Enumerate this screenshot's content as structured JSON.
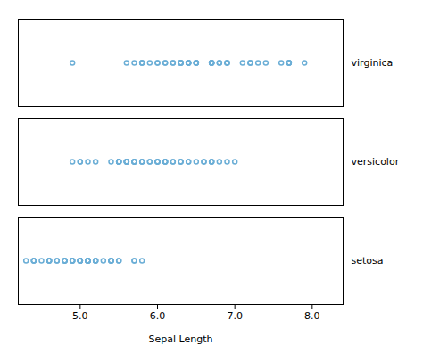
{
  "chart_data": {
    "type": "strip",
    "categories": [
      "virginica",
      "versicolor",
      "setosa"
    ],
    "values": [
      [
        6.3,
        5.8,
        7.1,
        6.3,
        6.5,
        7.6,
        4.9,
        7.3,
        6.7,
        7.2,
        6.5,
        6.4,
        6.8,
        5.7,
        5.8,
        6.4,
        6.5,
        7.7,
        7.7,
        6.0,
        6.9,
        5.6,
        7.7,
        6.3,
        6.7,
        7.2,
        6.2,
        6.1,
        6.4,
        7.2,
        7.4,
        7.9,
        6.4,
        6.3,
        6.1,
        7.7,
        6.3,
        6.4,
        6.0,
        6.9,
        6.7,
        6.9,
        5.8,
        6.8,
        6.7,
        6.7,
        6.3,
        6.5,
        6.2,
        5.9
      ],
      [
        7.0,
        6.4,
        6.9,
        5.5,
        6.5,
        5.7,
        6.3,
        4.9,
        6.6,
        5.2,
        5.0,
        5.9,
        6.0,
        6.1,
        5.6,
        6.7,
        5.6,
        5.8,
        6.2,
        5.6,
        5.9,
        6.1,
        6.3,
        6.1,
        6.4,
        6.6,
        6.8,
        6.7,
        6.0,
        5.7,
        5.5,
        5.5,
        5.8,
        6.0,
        5.4,
        6.0,
        6.7,
        6.3,
        5.6,
        5.5,
        5.5,
        6.1,
        5.8,
        5.0,
        5.6,
        5.7,
        5.7,
        6.2,
        5.1,
        5.7
      ],
      [
        5.1,
        4.9,
        4.7,
        4.6,
        5.0,
        5.4,
        4.6,
        5.0,
        4.4,
        4.9,
        5.4,
        4.8,
        4.8,
        4.3,
        5.8,
        5.7,
        5.4,
        5.1,
        5.7,
        5.1,
        5.4,
        5.1,
        4.6,
        5.1,
        4.8,
        5.0,
        5.0,
        5.2,
        5.2,
        4.7,
        4.8,
        5.4,
        5.2,
        5.5,
        4.9,
        5.0,
        5.5,
        4.9,
        4.4,
        5.1,
        5.0,
        4.5,
        4.4,
        5.0,
        5.1,
        4.8,
        5.1,
        4.6,
        5.3,
        5.0
      ]
    ],
    "color": "#6baed6",
    "xlabel": "Sepal Length",
    "xlim": [
      4.2,
      8.4
    ],
    "xticks": [
      5,
      6,
      7,
      8
    ],
    "tick_labels": "x"
  }
}
